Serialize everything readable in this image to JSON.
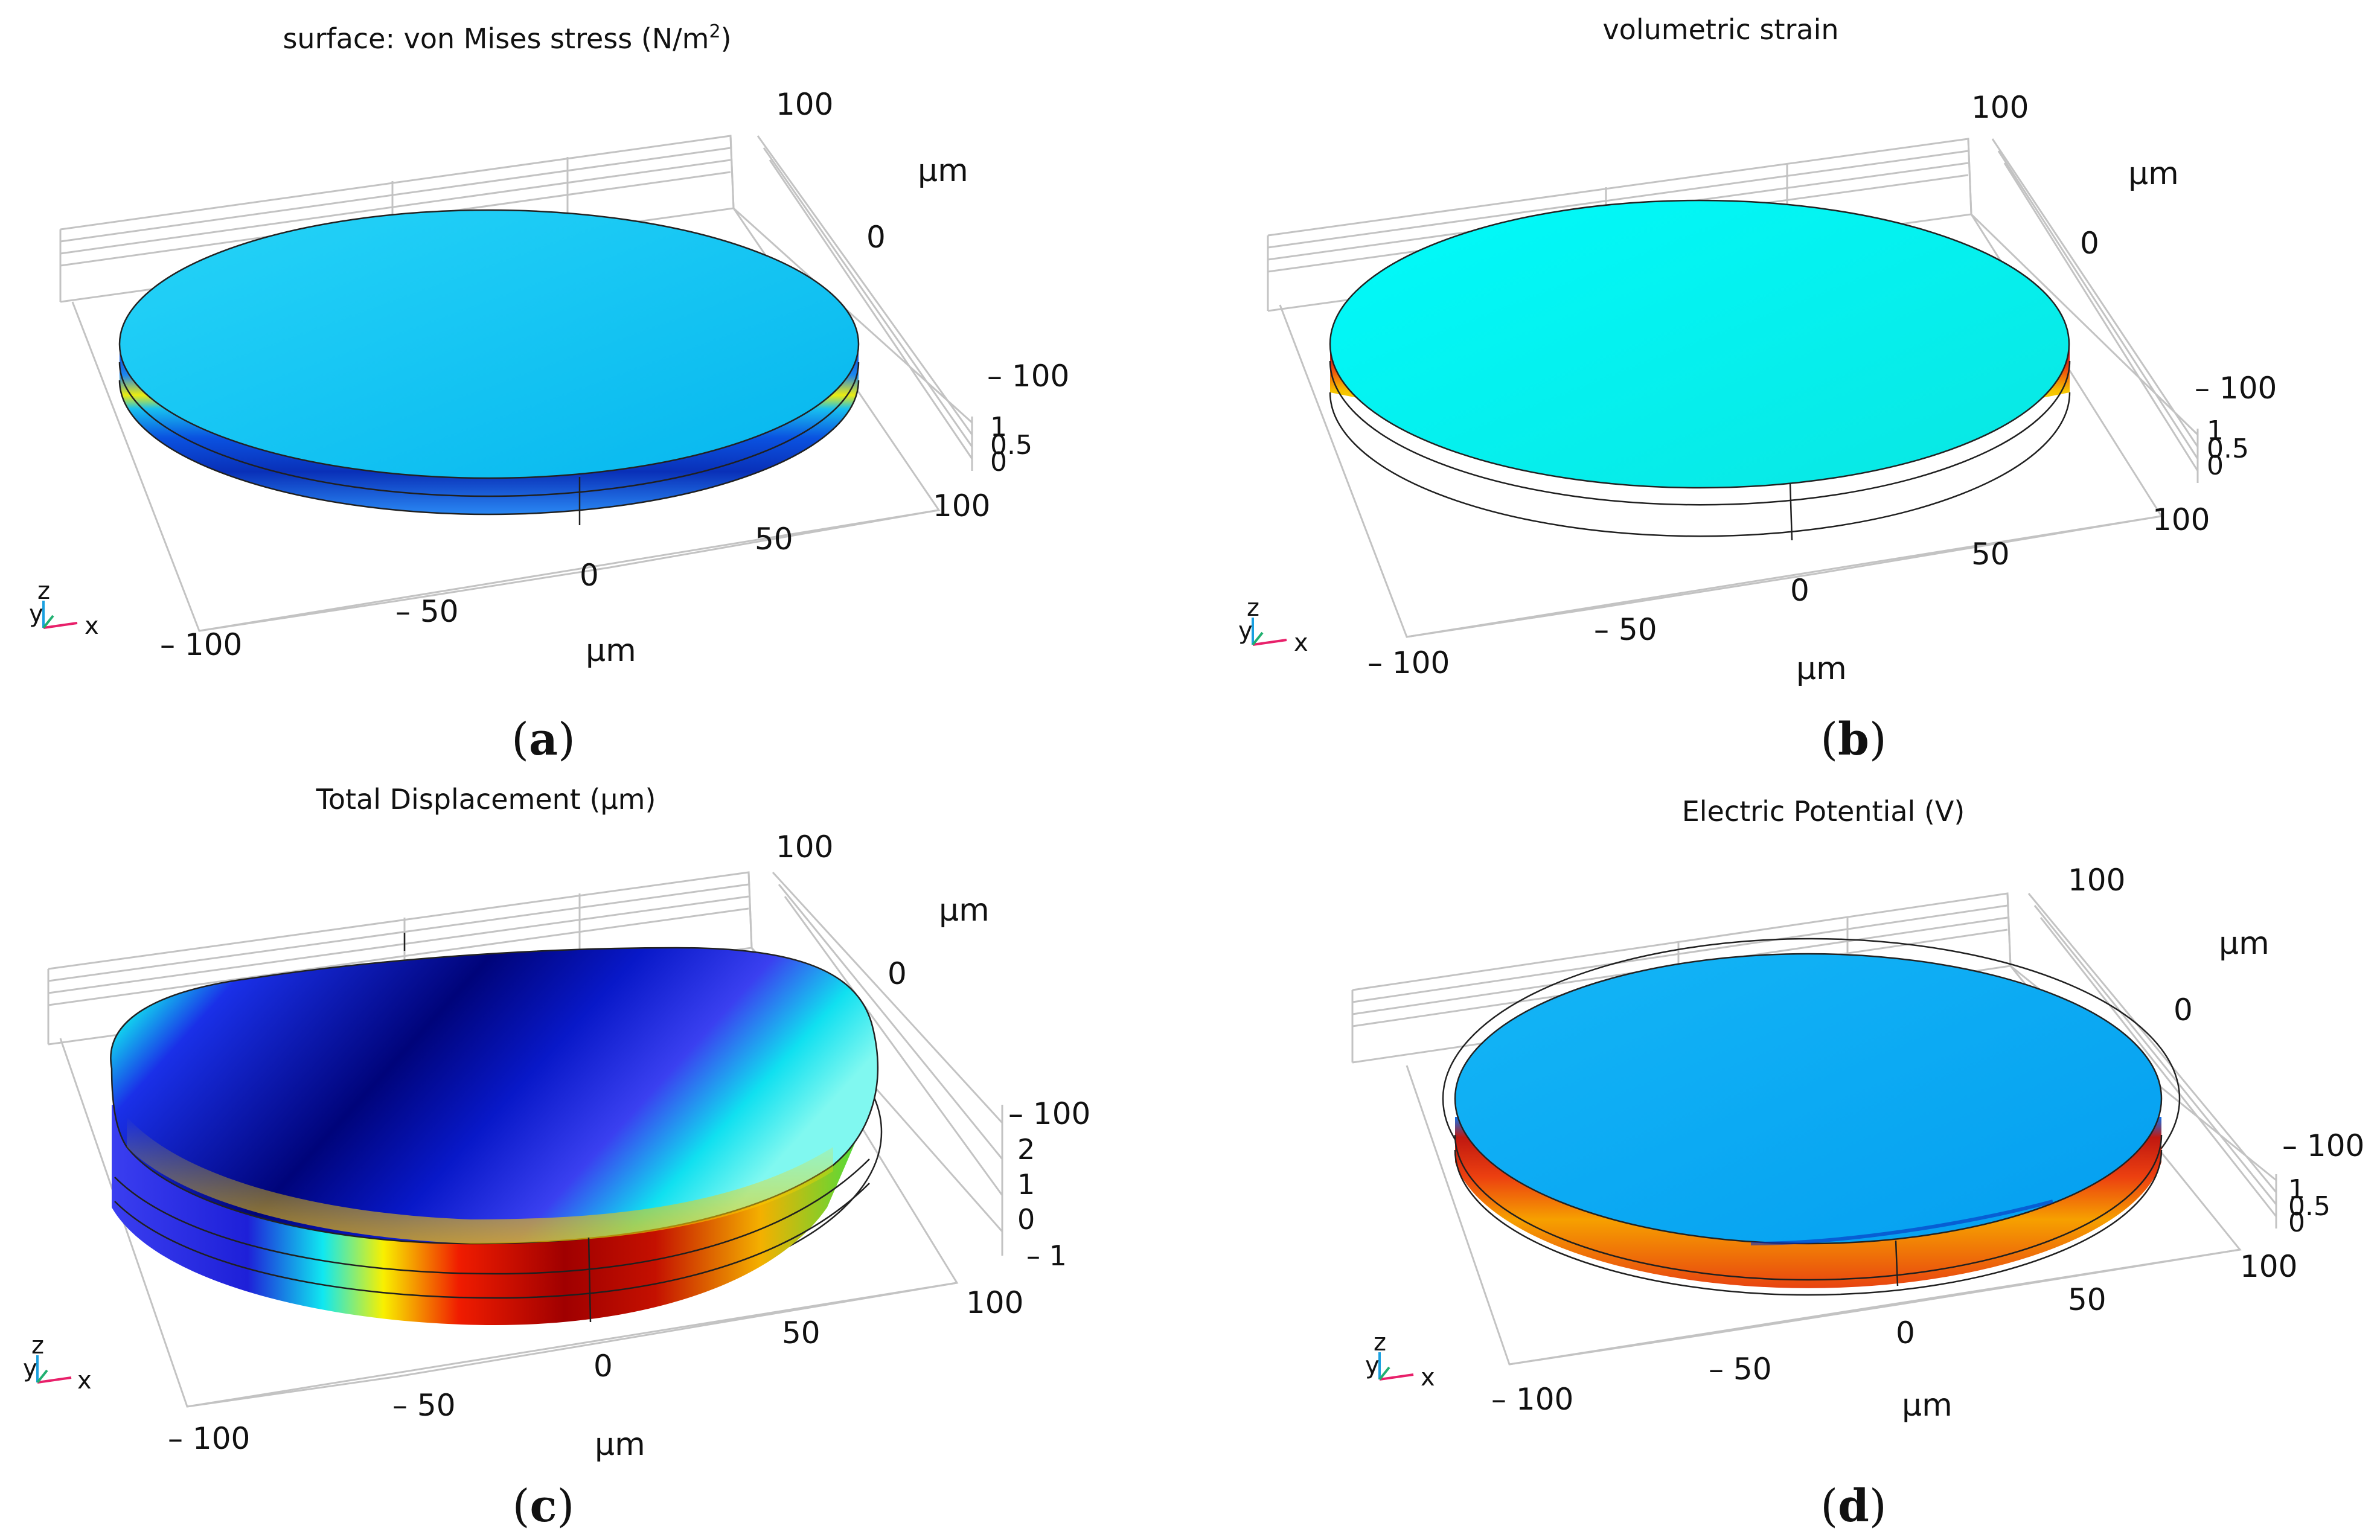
{
  "panels": [
    {
      "id": "a",
      "title_text": "surface: von Mises stress (N/m",
      "title_sup": "2",
      "title_end": ")",
      "caption": "a",
      "y_ticks": [
        "100",
        "0",
        "– 100"
      ],
      "x_ticks": [
        "– 100",
        "– 50",
        "0",
        "50",
        "100"
      ],
      "z_ticks": [
        "1",
        "0.5",
        "0"
      ],
      "y_unit": "μm",
      "x_unit": "μm",
      "triad": {
        "z": "z",
        "y": "y",
        "x": "x"
      },
      "colors": {
        "top": "#10c4f2",
        "band1": "#0a3fd4",
        "band2": "#f4e000",
        "band3": "#1778f0"
      }
    },
    {
      "id": "b",
      "title_text": "volumetric strain",
      "caption": "b",
      "y_ticks": [
        "100",
        "0",
        "– 100"
      ],
      "x_ticks": [
        "– 100",
        "– 50",
        "0",
        "50",
        "100"
      ],
      "z_ticks": [
        "1",
        "0.5",
        "0"
      ],
      "y_unit": "μm",
      "x_unit": "μm",
      "triad": {
        "z": "z",
        "y": "y",
        "x": "x"
      },
      "colors": {
        "top": "#00f0ee",
        "band1": "#d8300a",
        "band2": "#f7c400",
        "band3": "#ee6a10"
      }
    },
    {
      "id": "c",
      "title_text": "Total Displacement (μm)",
      "caption": "c",
      "y_ticks": [
        "100",
        "0",
        "– 100"
      ],
      "x_ticks": [
        "– 100",
        "– 50",
        "0",
        "50",
        "100"
      ],
      "z_ticks": [
        "2",
        "1",
        "0",
        "– 1"
      ],
      "y_unit": "μm",
      "x_unit": "μm",
      "triad": {
        "z": "z",
        "y": "y",
        "x": "x"
      },
      "colors": {
        "top": "#0a10c8",
        "band1": "#c81000",
        "band2": "#f7e200",
        "band3": "#10d8f0"
      }
    },
    {
      "id": "d",
      "title_text": "Electric Potential (V)",
      "caption": "d",
      "y_ticks": [
        "100",
        "0",
        "– 100"
      ],
      "x_ticks": [
        "– 100",
        "– 50",
        "0",
        "50",
        "100"
      ],
      "z_ticks": [
        "1",
        "0.5",
        "0"
      ],
      "y_unit": "μm",
      "x_unit": "μm",
      "triad": {
        "z": "z",
        "y": "y",
        "x": "x"
      },
      "colors": {
        "top": "#0aaaf4",
        "band1": "#d8260a",
        "band2": "#f7a800",
        "band3": "#e84410"
      }
    }
  ]
}
